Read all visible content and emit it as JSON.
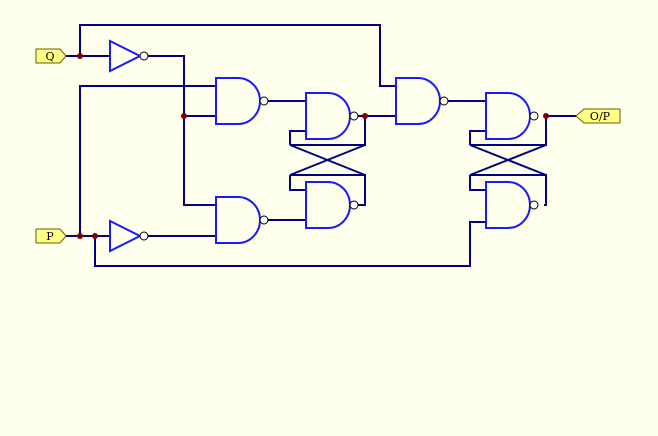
{
  "inputs": [
    {
      "label": "Q"
    },
    {
      "label": "P"
    }
  ],
  "outputs": [
    {
      "label": "O/P"
    }
  ],
  "colors": {
    "background": "#ffffee",
    "wire": "#000080",
    "gate": "#1a1aff",
    "junction": "#800000",
    "pin_fill": "#ffff88"
  },
  "components": {
    "not_gates": 2,
    "nand_gates": 7
  }
}
